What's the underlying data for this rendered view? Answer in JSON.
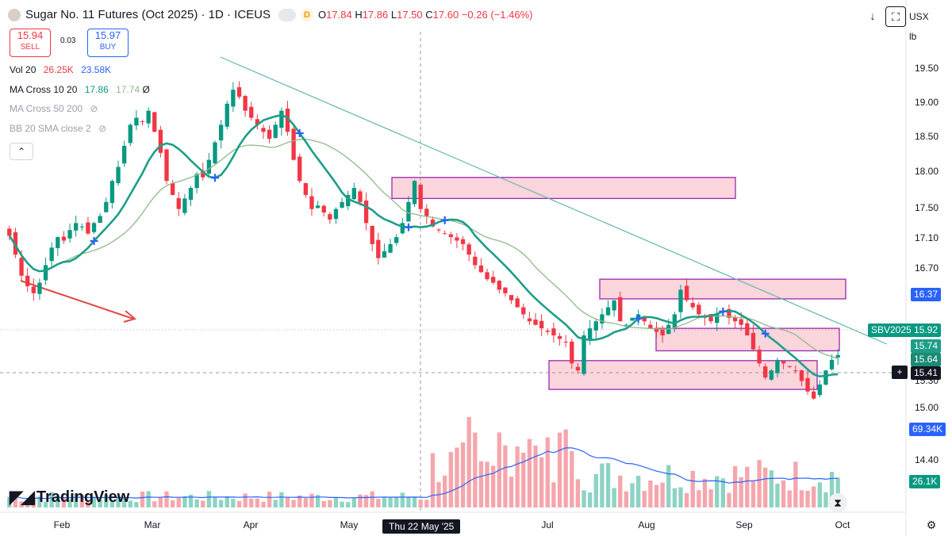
{
  "header": {
    "title": "Sugar No. 11 Futures (Oct 2025) · 1D · ICEUS",
    "flag": "D",
    "ohlc": [
      {
        "k": "O",
        "v": "17.84"
      },
      {
        "k": "H",
        "v": "17.86"
      },
      {
        "k": "L",
        "v": "17.50"
      },
      {
        "k": "C",
        "v": "17.60"
      }
    ],
    "change": "−0.26 (−1.46%)"
  },
  "trade": {
    "sell_price": "15.94",
    "sell_label": "SELL",
    "spread": "0.03",
    "buy_price": "15.97",
    "buy_label": "BUY"
  },
  "indicators": [
    {
      "name": "Vol 20",
      "v1": "26.25K",
      "v2": "23.58K",
      "muted": false
    },
    {
      "name": "MA Cross 10 20",
      "v1": "17.86",
      "v2": "17.74",
      "muted": false
    },
    {
      "name": "MA Cross 50 200",
      "v1": "",
      "v2": "",
      "muted": true
    },
    {
      "name": "BB 20 SMA close 2",
      "v1": "",
      "v2": "",
      "muted": true
    }
  ],
  "toolbar": {
    "currency": "USX",
    "unit": "lb"
  },
  "watermark": "TradingView",
  "crosshair_date": "Thu 22 May '25",
  "price_tags": {
    "ma_fast": "16.37",
    "symbol": "SBV2025",
    "last": "15.92",
    "ma_slow": "15.74",
    "ma_cross": "15.64",
    "crosshair": "15.41",
    "vol_ma": "69.34K",
    "vol_last": "26.1K"
  },
  "colors": {
    "up": "#089981",
    "down": "#f23645",
    "ma_fast": "#1e9e88",
    "ma_slow": "#8fb98a",
    "zone_fill": "#fbd5dc",
    "zone_stroke": "#9c27b0",
    "trend": "#5fb8ac",
    "arrow": "#e04848",
    "vol_ma": "#2962ff"
  },
  "chart_data": {
    "type": "candlestick",
    "instrument": "Sugar No. 11 Futures (Oct 2025)",
    "interval": "1D",
    "x_ticks": [
      "Feb",
      "Mar",
      "Apr",
      "May",
      "Jul",
      "Aug",
      "Sep",
      "Oct"
    ],
    "y_ticks": [
      "19.50",
      "19.00",
      "18.50",
      "18.00",
      "17.50",
      "17.10",
      "16.70",
      "15.30",
      "15.00",
      "14.40"
    ],
    "y_range": [
      14.2,
      20.3
    ],
    "closes": [
      17.62,
      17.35,
      17.05,
      16.9,
      16.8,
      16.95,
      17.2,
      17.45,
      17.6,
      17.55,
      17.7,
      17.8,
      17.75,
      17.65,
      17.8,
      17.9,
      18.1,
      18.4,
      18.6,
      18.9,
      19.2,
      19.3,
      19.25,
      19.4,
      19.1,
      18.8,
      18.4,
      18.2,
      18.0,
      18.15,
      18.3,
      18.5,
      18.45,
      18.7,
      18.95,
      19.2,
      19.5,
      19.7,
      19.6,
      19.4,
      19.3,
      19.2,
      19.1,
      19.0,
      19.2,
      19.4,
      19.1,
      18.7,
      18.4,
      18.2,
      18.0,
      18.05,
      17.95,
      17.85,
      18.0,
      18.1,
      18.2,
      18.3,
      18.1,
      17.8,
      17.5,
      17.3,
      17.4,
      17.5,
      17.6,
      17.8,
      18.1,
      18.4,
      18.0,
      17.9,
      17.75,
      17.7,
      17.65,
      17.6,
      17.55,
      17.5,
      17.35,
      17.2,
      17.1,
      17.0,
      16.95,
      16.85,
      16.8,
      16.7,
      16.6,
      16.5,
      16.4,
      16.35,
      16.3,
      16.25,
      16.2,
      16.15,
      16.1,
      15.8,
      15.7,
      16.2,
      16.3,
      16.4,
      16.5,
      16.6,
      16.7,
      16.4,
      16.35,
      16.45,
      16.5,
      16.4,
      16.3,
      16.25,
      16.2,
      16.35,
      16.5,
      16.85,
      16.7,
      16.6,
      16.5,
      16.45,
      16.4,
      16.5,
      16.55,
      16.45,
      16.4,
      16.35,
      16.2,
      16.0,
      15.8,
      15.6,
      15.7,
      15.85,
      15.8,
      15.75,
      15.7,
      15.55,
      15.4,
      15.3,
      15.5,
      15.7,
      15.85,
      15.92
    ],
    "series": [
      {
        "name": "MA Cross 10 20",
        "last": "17.86"
      },
      {
        "name": "MA Cross 50 200",
        "last": "17.74"
      },
      {
        "name": "Vol 20",
        "last": "26.25K"
      }
    ],
    "volume": {
      "ma_label": "69.34K",
      "last": "26.1K"
    },
    "zones": [
      {
        "from": "May",
        "to": "Aug",
        "top": 18.45,
        "bottom": 18.15
      },
      {
        "from": "Jul",
        "to": "Oct",
        "top": 17.0,
        "bottom": 16.72
      },
      {
        "from": "Aug",
        "to": "Oct",
        "top": 16.3,
        "bottom": 15.98
      },
      {
        "from": "Jul",
        "to": "Sep",
        "top": 15.84,
        "bottom": 15.43
      }
    ],
    "grid": false,
    "legend": "top-left"
  }
}
